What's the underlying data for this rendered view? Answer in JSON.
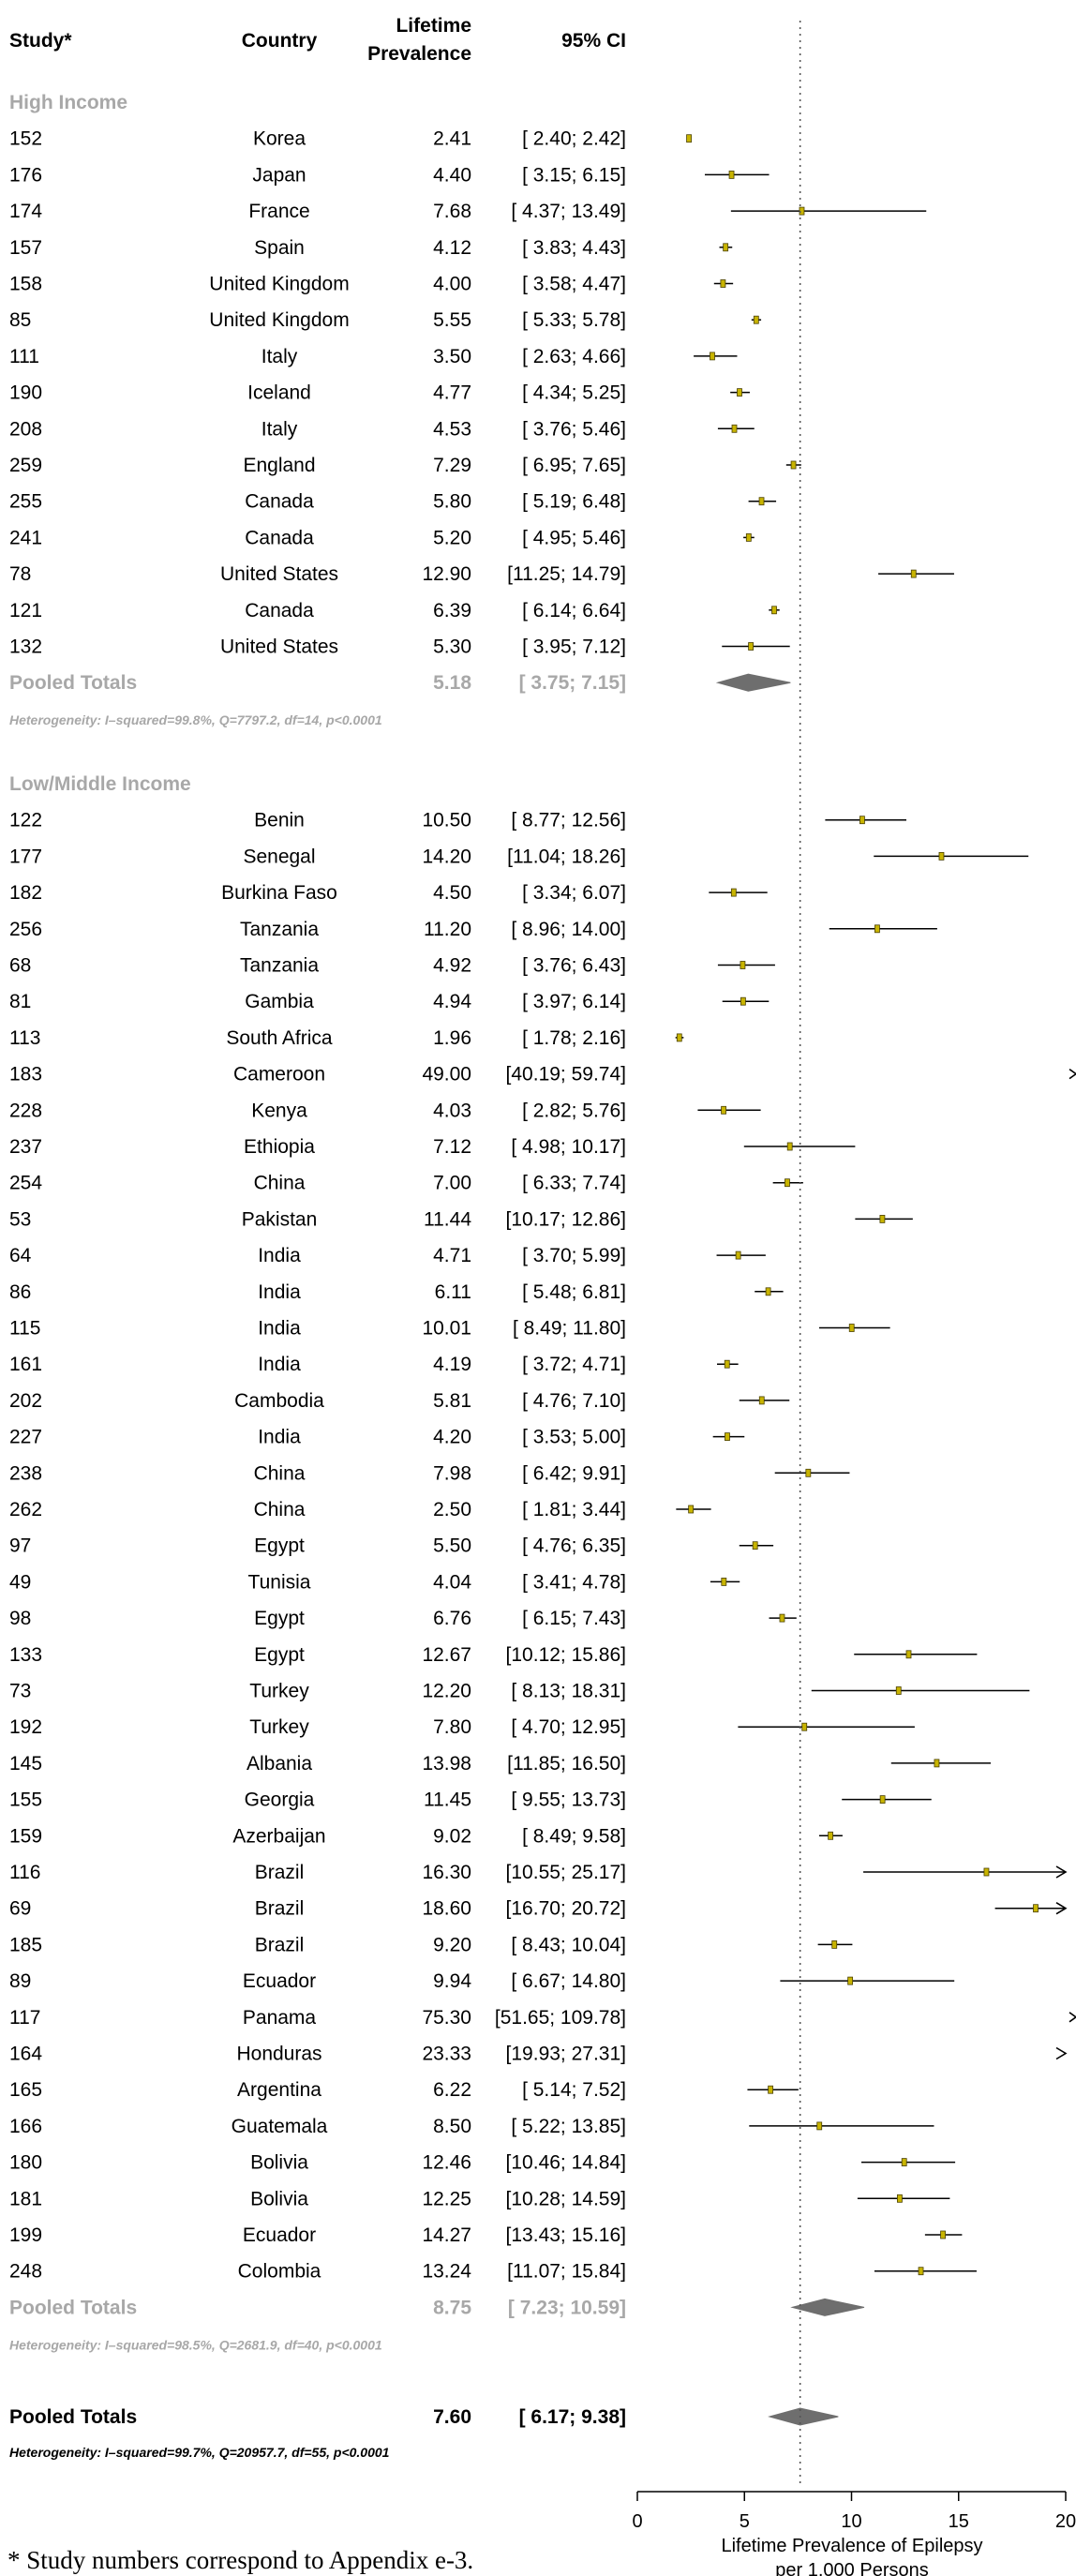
{
  "chart_data": {
    "type": "forest",
    "columns": {
      "study": "Study*",
      "country": "Country",
      "prevalence_line1": "Lifetime",
      "prevalence_line2": "Prevalence",
      "ci": "95% CI"
    },
    "xlabel_line1": "Lifetime Prevalence of Epilepsy",
    "xlabel_line2": "per 1,000 Persons",
    "xlim": [
      0,
      20
    ],
    "xticks": [
      0,
      5,
      10,
      15,
      20
    ],
    "reference_line": 7.6,
    "groups": [
      {
        "name": "High Income",
        "studies": [
          {
            "study": "152",
            "country": "Korea",
            "prev": "2.41",
            "ci": "[ 2.40;  2.42]",
            "est": 2.41,
            "lo": 2.4,
            "hi": 2.42
          },
          {
            "study": "176",
            "country": "Japan",
            "prev": "4.40",
            "ci": "[ 3.15;  6.15]",
            "est": 4.4,
            "lo": 3.15,
            "hi": 6.15
          },
          {
            "study": "174",
            "country": "France",
            "prev": "7.68",
            "ci": "[ 4.37; 13.49]",
            "est": 7.68,
            "lo": 4.37,
            "hi": 13.49
          },
          {
            "study": "157",
            "country": "Spain",
            "prev": "4.12",
            "ci": "[ 3.83;  4.43]",
            "est": 4.12,
            "lo": 3.83,
            "hi": 4.43
          },
          {
            "study": "158",
            "country": "United Kingdom",
            "prev": "4.00",
            "ci": "[ 3.58;  4.47]",
            "est": 4.0,
            "lo": 3.58,
            "hi": 4.47
          },
          {
            "study": "85",
            "country": "United Kingdom",
            "prev": "5.55",
            "ci": "[ 5.33;  5.78]",
            "est": 5.55,
            "lo": 5.33,
            "hi": 5.78
          },
          {
            "study": "111",
            "country": "Italy",
            "prev": "3.50",
            "ci": "[ 2.63;  4.66]",
            "est": 3.5,
            "lo": 2.63,
            "hi": 4.66
          },
          {
            "study": "190",
            "country": "Iceland",
            "prev": "4.77",
            "ci": "[ 4.34;  5.25]",
            "est": 4.77,
            "lo": 4.34,
            "hi": 5.25
          },
          {
            "study": "208",
            "country": "Italy",
            "prev": "4.53",
            "ci": "[ 3.76;  5.46]",
            "est": 4.53,
            "lo": 3.76,
            "hi": 5.46
          },
          {
            "study": "259",
            "country": "England",
            "prev": "7.29",
            "ci": "[ 6.95;  7.65]",
            "est": 7.29,
            "lo": 6.95,
            "hi": 7.65
          },
          {
            "study": "255",
            "country": "Canada",
            "prev": "5.80",
            "ci": "[ 5.19;  6.48]",
            "est": 5.8,
            "lo": 5.19,
            "hi": 6.48
          },
          {
            "study": "241",
            "country": "Canada",
            "prev": "5.20",
            "ci": "[ 4.95;  5.46]",
            "est": 5.2,
            "lo": 4.95,
            "hi": 5.46
          },
          {
            "study": "78",
            "country": "United States",
            "prev": "12.90",
            "ci": "[11.25; 14.79]",
            "est": 12.9,
            "lo": 11.25,
            "hi": 14.79
          },
          {
            "study": "121",
            "country": "Canada",
            "prev": "6.39",
            "ci": "[ 6.14;  6.64]",
            "est": 6.39,
            "lo": 6.14,
            "hi": 6.64
          },
          {
            "study": "132",
            "country": "United States",
            "prev": "5.30",
            "ci": "[ 3.95;  7.12]",
            "est": 5.3,
            "lo": 3.95,
            "hi": 7.12
          }
        ],
        "pooled": {
          "label": "Pooled Totals",
          "prev": "5.18",
          "ci": "[ 3.75;  7.15]",
          "est": 5.18,
          "lo": 3.75,
          "hi": 7.15
        },
        "heterogeneity": "Heterogeneity: I–squared=99.8%, Q=7797.2, df=14, p<0.0001"
      },
      {
        "name": "Low/Middle Income",
        "studies": [
          {
            "study": "122",
            "country": "Benin",
            "prev": "10.50",
            "ci": "[ 8.77; 12.56]",
            "est": 10.5,
            "lo": 8.77,
            "hi": 12.56
          },
          {
            "study": "177",
            "country": "Senegal",
            "prev": "14.20",
            "ci": "[11.04; 18.26]",
            "est": 14.2,
            "lo": 11.04,
            "hi": 18.26
          },
          {
            "study": "182",
            "country": "Burkina Faso",
            "prev": "4.50",
            "ci": "[ 3.34;  6.07]",
            "est": 4.5,
            "lo": 3.34,
            "hi": 6.07
          },
          {
            "study": "256",
            "country": "Tanzania",
            "prev": "11.20",
            "ci": "[ 8.96; 14.00]",
            "est": 11.2,
            "lo": 8.96,
            "hi": 14.0
          },
          {
            "study": "68",
            "country": "Tanzania",
            "prev": "4.92",
            "ci": "[ 3.76;  6.43]",
            "est": 4.92,
            "lo": 3.76,
            "hi": 6.43
          },
          {
            "study": "81",
            "country": "Gambia",
            "prev": "4.94",
            "ci": "[ 3.97;  6.14]",
            "est": 4.94,
            "lo": 3.97,
            "hi": 6.14
          },
          {
            "study": "113",
            "country": "South Africa",
            "prev": "1.96",
            "ci": "[ 1.78;  2.16]",
            "est": 1.96,
            "lo": 1.78,
            "hi": 2.16
          },
          {
            "study": "183",
            "country": "Cameroon",
            "prev": "49.00",
            "ci": "[40.19; 59.74]",
            "est": 49.0,
            "lo": 40.19,
            "hi": 59.74
          },
          {
            "study": "228",
            "country": "Kenya",
            "prev": "4.03",
            "ci": "[ 2.82;  5.76]",
            "est": 4.03,
            "lo": 2.82,
            "hi": 5.76
          },
          {
            "study": "237",
            "country": "Ethiopia",
            "prev": "7.12",
            "ci": "[ 4.98; 10.17]",
            "est": 7.12,
            "lo": 4.98,
            "hi": 10.17
          },
          {
            "study": "254",
            "country": "China",
            "prev": "7.00",
            "ci": "[ 6.33;  7.74]",
            "est": 7.0,
            "lo": 6.33,
            "hi": 7.74
          },
          {
            "study": "53",
            "country": "Pakistan",
            "prev": "11.44",
            "ci": "[10.17; 12.86]",
            "est": 11.44,
            "lo": 10.17,
            "hi": 12.86
          },
          {
            "study": "64",
            "country": "India",
            "prev": "4.71",
            "ci": "[ 3.70;  5.99]",
            "est": 4.71,
            "lo": 3.7,
            "hi": 5.99
          },
          {
            "study": "86",
            "country": "India",
            "prev": "6.11",
            "ci": "[ 5.48;  6.81]",
            "est": 6.11,
            "lo": 5.48,
            "hi": 6.81
          },
          {
            "study": "115",
            "country": "India",
            "prev": "10.01",
            "ci": "[ 8.49; 11.80]",
            "est": 10.01,
            "lo": 8.49,
            "hi": 11.8
          },
          {
            "study": "161",
            "country": "India",
            "prev": "4.19",
            "ci": "[ 3.72;  4.71]",
            "est": 4.19,
            "lo": 3.72,
            "hi": 4.71
          },
          {
            "study": "202",
            "country": "Cambodia",
            "prev": "5.81",
            "ci": "[ 4.76;  7.10]",
            "est": 5.81,
            "lo": 4.76,
            "hi": 7.1
          },
          {
            "study": "227",
            "country": "India",
            "prev": "4.20",
            "ci": "[ 3.53;  5.00]",
            "est": 4.2,
            "lo": 3.53,
            "hi": 5.0
          },
          {
            "study": "238",
            "country": "China",
            "prev": "7.98",
            "ci": "[ 6.42;  9.91]",
            "est": 7.98,
            "lo": 6.42,
            "hi": 9.91
          },
          {
            "study": "262",
            "country": "China",
            "prev": "2.50",
            "ci": "[ 1.81;  3.44]",
            "est": 2.5,
            "lo": 1.81,
            "hi": 3.44
          },
          {
            "study": "97",
            "country": "Egypt",
            "prev": "5.50",
            "ci": "[ 4.76;  6.35]",
            "est": 5.5,
            "lo": 4.76,
            "hi": 6.35
          },
          {
            "study": "49",
            "country": "Tunisia",
            "prev": "4.04",
            "ci": "[ 3.41;  4.78]",
            "est": 4.04,
            "lo": 3.41,
            "hi": 4.78
          },
          {
            "study": "98",
            "country": "Egypt",
            "prev": "6.76",
            "ci": "[ 6.15;  7.43]",
            "est": 6.76,
            "lo": 6.15,
            "hi": 7.43
          },
          {
            "study": "133",
            "country": "Egypt",
            "prev": "12.67",
            "ci": "[10.12; 15.86]",
            "est": 12.67,
            "lo": 10.12,
            "hi": 15.86
          },
          {
            "study": "73",
            "country": "Turkey",
            "prev": "12.20",
            "ci": "[ 8.13; 18.31]",
            "est": 12.2,
            "lo": 8.13,
            "hi": 18.31
          },
          {
            "study": "192",
            "country": "Turkey",
            "prev": "7.80",
            "ci": "[ 4.70; 12.95]",
            "est": 7.8,
            "lo": 4.7,
            "hi": 12.95
          },
          {
            "study": "145",
            "country": "Albania",
            "prev": "13.98",
            "ci": "[11.85; 16.50]",
            "est": 13.98,
            "lo": 11.85,
            "hi": 16.5
          },
          {
            "study": "155",
            "country": "Georgia",
            "prev": "11.45",
            "ci": "[ 9.55; 13.73]",
            "est": 11.45,
            "lo": 9.55,
            "hi": 13.73
          },
          {
            "study": "159",
            "country": "Azerbaijan",
            "prev": "9.02",
            "ci": "[ 8.49;  9.58]",
            "est": 9.02,
            "lo": 8.49,
            "hi": 9.58
          },
          {
            "study": "116",
            "country": "Brazil",
            "prev": "16.30",
            "ci": "[10.55; 25.17]",
            "est": 16.3,
            "lo": 10.55,
            "hi": 25.17
          },
          {
            "study": "69",
            "country": "Brazil",
            "prev": "18.60",
            "ci": "[16.70; 20.72]",
            "est": 18.6,
            "lo": 16.7,
            "hi": 20.72
          },
          {
            "study": "185",
            "country": "Brazil",
            "prev": "9.20",
            "ci": "[ 8.43; 10.04]",
            "est": 9.2,
            "lo": 8.43,
            "hi": 10.04
          },
          {
            "study": "89",
            "country": "Ecuador",
            "prev": "9.94",
            "ci": "[ 6.67; 14.80]",
            "est": 9.94,
            "lo": 6.67,
            "hi": 14.8
          },
          {
            "study": "117",
            "country": "Panama",
            "prev": "75.30",
            "ci": "[51.65; 109.78]",
            "est": 75.3,
            "lo": 51.65,
            "hi": 109.78
          },
          {
            "study": "164",
            "country": "Honduras",
            "prev": "23.33",
            "ci": "[19.93; 27.31]",
            "est": 23.33,
            "lo": 19.93,
            "hi": 27.31
          },
          {
            "study": "165",
            "country": "Argentina",
            "prev": "6.22",
            "ci": "[ 5.14;  7.52]",
            "est": 6.22,
            "lo": 5.14,
            "hi": 7.52
          },
          {
            "study": "166",
            "country": "Guatemala",
            "prev": "8.50",
            "ci": "[ 5.22; 13.85]",
            "est": 8.5,
            "lo": 5.22,
            "hi": 13.85
          },
          {
            "study": "180",
            "country": "Bolivia",
            "prev": "12.46",
            "ci": "[10.46; 14.84]",
            "est": 12.46,
            "lo": 10.46,
            "hi": 14.84
          },
          {
            "study": "181",
            "country": "Bolivia",
            "prev": "12.25",
            "ci": "[10.28; 14.59]",
            "est": 12.25,
            "lo": 10.28,
            "hi": 14.59
          },
          {
            "study": "199",
            "country": "Ecuador",
            "prev": "14.27",
            "ci": "[13.43; 15.16]",
            "est": 14.27,
            "lo": 13.43,
            "hi": 15.16
          },
          {
            "study": "248",
            "country": "Colombia",
            "prev": "13.24",
            "ci": "[11.07; 15.84]",
            "est": 13.24,
            "lo": 11.07,
            "hi": 15.84
          }
        ],
        "pooled": {
          "label": "Pooled Totals",
          "prev": "8.75",
          "ci": "[ 7.23; 10.59]",
          "est": 8.75,
          "lo": 7.23,
          "hi": 10.59
        },
        "heterogeneity": "Heterogeneity: I–squared=98.5%, Q=2681.9, df=40, p<0.0001"
      }
    ],
    "overall": {
      "label": "Pooled Totals",
      "prev": "7.60",
      "ci": "[ 6.17;  9.38]",
      "est": 7.6,
      "lo": 6.17,
      "hi": 9.38
    },
    "overall_heterogeneity": "Heterogeneity: I–squared=99.7%, Q=20957.7, df=55, p<0.0001",
    "colors": {
      "point": "#c8b400",
      "point_outline": "#4a4000",
      "ci_line": "#000000",
      "diamond": "#6e6e6e",
      "group_text": "#a8a8a8",
      "reference_line": "#555555"
    }
  },
  "footnote": "* Study numbers correspond to Appendix e-3."
}
